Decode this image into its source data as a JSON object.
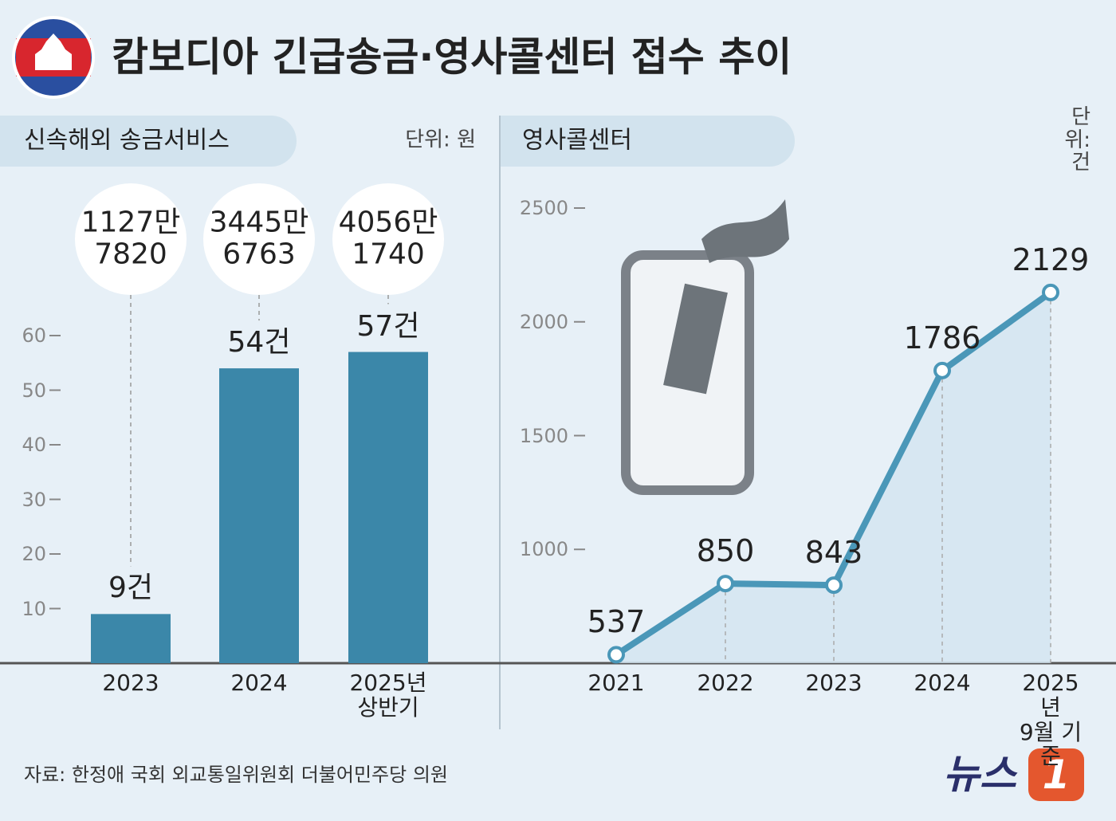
{
  "title": "캄보디아 긴급송금·영사콜센터 접수 추이",
  "source": "자료: 한정애 국회 외교통일위원회 더불어민주당 의원",
  "logo": {
    "text": "뉴스",
    "mark": "1"
  },
  "chart_data": [
    {
      "type": "bar",
      "title": "신속해외 송금서비스",
      "unit": "단위: 원",
      "categories": [
        "2023",
        "2024",
        "2025년\n상반기"
      ],
      "values": [
        9,
        54,
        57
      ],
      "value_labels": [
        "9건",
        "54건",
        "57건"
      ],
      "amounts": [
        "1127만\n7820",
        "3445만\n6763",
        "4056만\n1740"
      ],
      "color": "#3b87a9",
      "ylim": [
        0,
        60
      ],
      "yticks": [
        10,
        20,
        30,
        40,
        50,
        60
      ]
    },
    {
      "type": "line",
      "title": "영사콜센터",
      "unit": "단위: 건",
      "categories": [
        "2021",
        "2022",
        "2023",
        "2024",
        "2025년\n9월 기준"
      ],
      "values": [
        537,
        850,
        843,
        1786,
        2129
      ],
      "color": "#4a97b8",
      "ylim": [
        500,
        2500
      ],
      "yticks": [
        1000,
        1500,
        2000,
        2500
      ]
    }
  ]
}
